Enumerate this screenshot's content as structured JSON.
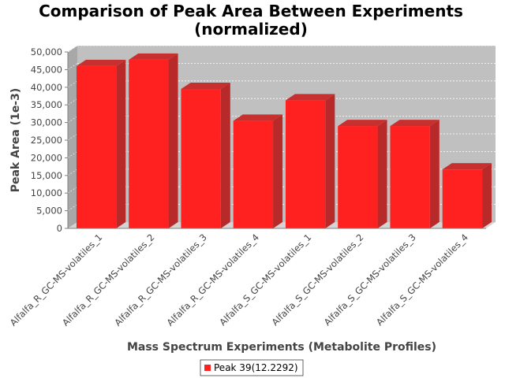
{
  "chart_data": {
    "type": "bar",
    "title": "Comparison of Peak Area Between Experiments (normalized)",
    "title_lines": [
      "Comparison of Peak Area Between Experiments",
      "(normalized)"
    ],
    "xlabel": "Mass Spectrum Experiments (Metabolite Profiles)",
    "ylabel": "Peak Area (1e-3)",
    "ylim": [
      0,
      50000
    ],
    "yticks": [
      0,
      5000,
      10000,
      15000,
      20000,
      25000,
      30000,
      35000,
      40000,
      45000,
      50000
    ],
    "ytick_labels": [
      "0",
      "5,000",
      "10,000",
      "15,000",
      "20,000",
      "25,000",
      "30,000",
      "35,000",
      "40,000",
      "45,000",
      "50,000"
    ],
    "categories": [
      "Alfalfa_R_GC-MS-volatiles_1",
      "Alfalfa_R_GC-MS-volatiles_2",
      "Alfalfa_R_GC-MS-volatiles_3",
      "Alfalfa_R_GC-MS-volatiles_4",
      "Alfalfa_S_GC-MS-volatiles_1",
      "Alfalfa_S_GC-MS-volatiles_2",
      "Alfalfa_S_GC-MS-volatiles_3",
      "Alfalfa_S_GC-MS-volatiles_4"
    ],
    "series": [
      {
        "name": "Peak 39(12.2292)",
        "color": "#ff2020",
        "values": [
          46000,
          47800,
          39500,
          30500,
          36300,
          29000,
          29000,
          16700
        ]
      }
    ],
    "grid": true,
    "legend_position": "bottom-center",
    "plot_background": "#c0c0c0"
  }
}
